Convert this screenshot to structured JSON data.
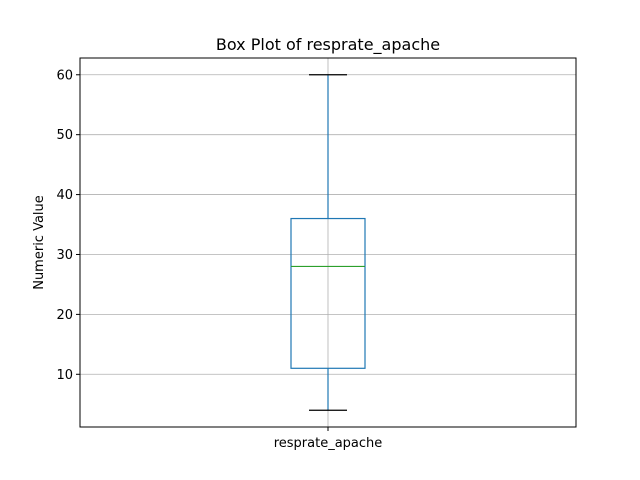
{
  "chart_data": {
    "type": "box",
    "title": "Box Plot of resprate_apache",
    "xlabel": "",
    "ylabel": "Numeric Value",
    "ylim": [
      1.2,
      62.8
    ],
    "yticks": [
      10,
      20,
      30,
      40,
      50,
      60
    ],
    "ytick_labels": [
      "10",
      "20",
      "30",
      "40",
      "50",
      "60"
    ],
    "grid": true,
    "categories": [
      "resprate_apache"
    ],
    "boxes": [
      {
        "name": "resprate_apache",
        "whisker_low": 4,
        "q1": 11,
        "median": 28,
        "q3": 36,
        "whisker_high": 60
      }
    ],
    "colors": {
      "box": "#1f77b4",
      "whisker": "#1f77b4",
      "median": "#2ca02c",
      "cap": "#000000",
      "grid": "#b0b0b0"
    }
  }
}
